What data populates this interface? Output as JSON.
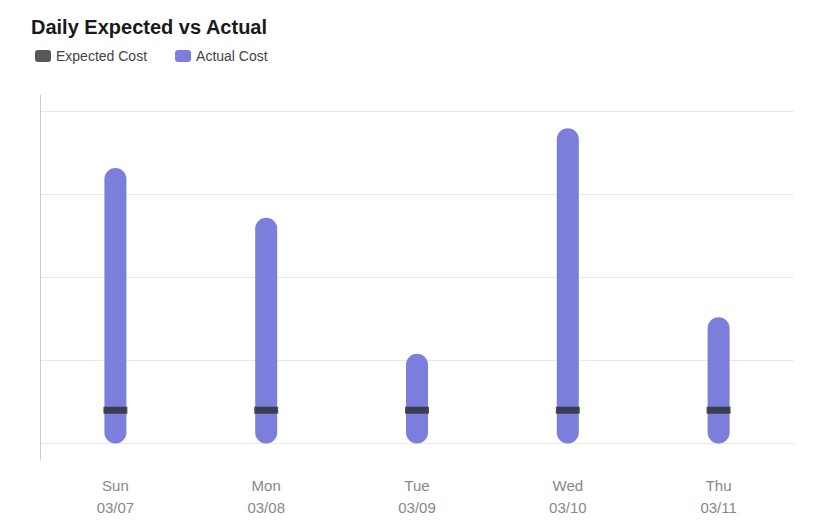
{
  "chart_data": {
    "type": "bar",
    "title": "Daily Expected vs Actual",
    "categories": [
      "Sun\n03/07",
      "Mon\n03/08",
      "Tue\n03/09",
      "Wed\n03/10",
      "Thu\n03/11"
    ],
    "series": [
      {
        "name": "Expected Cost",
        "type": "scatter",
        "marker": "rect",
        "color": "#2d2d2d",
        "values": [
          10,
          10,
          10,
          10,
          10
        ]
      },
      {
        "name": "Actual Cost",
        "type": "bar",
        "color": "#7B7FDB",
        "values": [
          83,
          68,
          27,
          95,
          38
        ]
      }
    ],
    "ylim": [
      -5,
      105
    ],
    "yticks": [
      0,
      25,
      50,
      75,
      100
    ],
    "grid": true,
    "legend": "upper left",
    "tick_labels": "x"
  }
}
